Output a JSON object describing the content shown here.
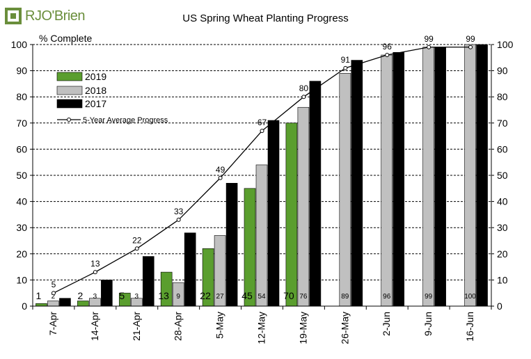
{
  "brand": {
    "name": "RJO'Brien",
    "mark": "logo-icon",
    "color": "#6a8e3b"
  },
  "chart_data": {
    "type": "bar",
    "title": "US Spring Wheat Planting Progress",
    "ylabel": "% Complete",
    "xlabel": "",
    "ylim": [
      0,
      100
    ],
    "yticks": [
      0,
      10,
      20,
      30,
      40,
      50,
      60,
      70,
      80,
      90,
      100
    ],
    "grid": true,
    "legend_position": "top-left",
    "categories": [
      "7-Apr",
      "14-Apr",
      "21-Apr",
      "28-Apr",
      "5-May",
      "12-May",
      "19-May",
      "26-May",
      "2-Jun",
      "9-Jun",
      "16-Jun"
    ],
    "series": [
      {
        "name": "2019",
        "color": "#5a9e2e",
        "values": [
          1,
          2,
          5,
          13,
          22,
          45,
          70,
          null,
          null,
          null,
          null
        ],
        "labels": [
          "1",
          "2",
          "5",
          "13",
          "22",
          "45",
          "70",
          "",
          "",
          "",
          ""
        ]
      },
      {
        "name": "2018",
        "color": "#c0c0c0",
        "values": [
          2,
          3,
          3,
          9,
          27,
          54,
          76,
          89,
          96,
          99,
          100
        ],
        "labels": [
          "2",
          "3",
          "3",
          "9",
          "27",
          "54",
          "76",
          "89",
          "96",
          "99",
          "100"
        ]
      },
      {
        "name": "2017",
        "color": "#000000",
        "values": [
          3,
          10,
          19,
          28,
          47,
          71,
          86,
          94,
          97,
          99,
          100
        ],
        "labels": [
          "",
          "",
          "",
          "",
          "",
          "",
          "",
          "",
          "",
          "",
          ""
        ]
      }
    ],
    "line": {
      "name": "5-Year Average Progress",
      "type": "line",
      "values": [
        5,
        13,
        22,
        33,
        49,
        67,
        80,
        91,
        96,
        99,
        99
      ],
      "labels": [
        "5",
        "13",
        "22",
        "33",
        "49",
        "67",
        "80",
        "91",
        "96",
        "99",
        "99"
      ]
    }
  }
}
